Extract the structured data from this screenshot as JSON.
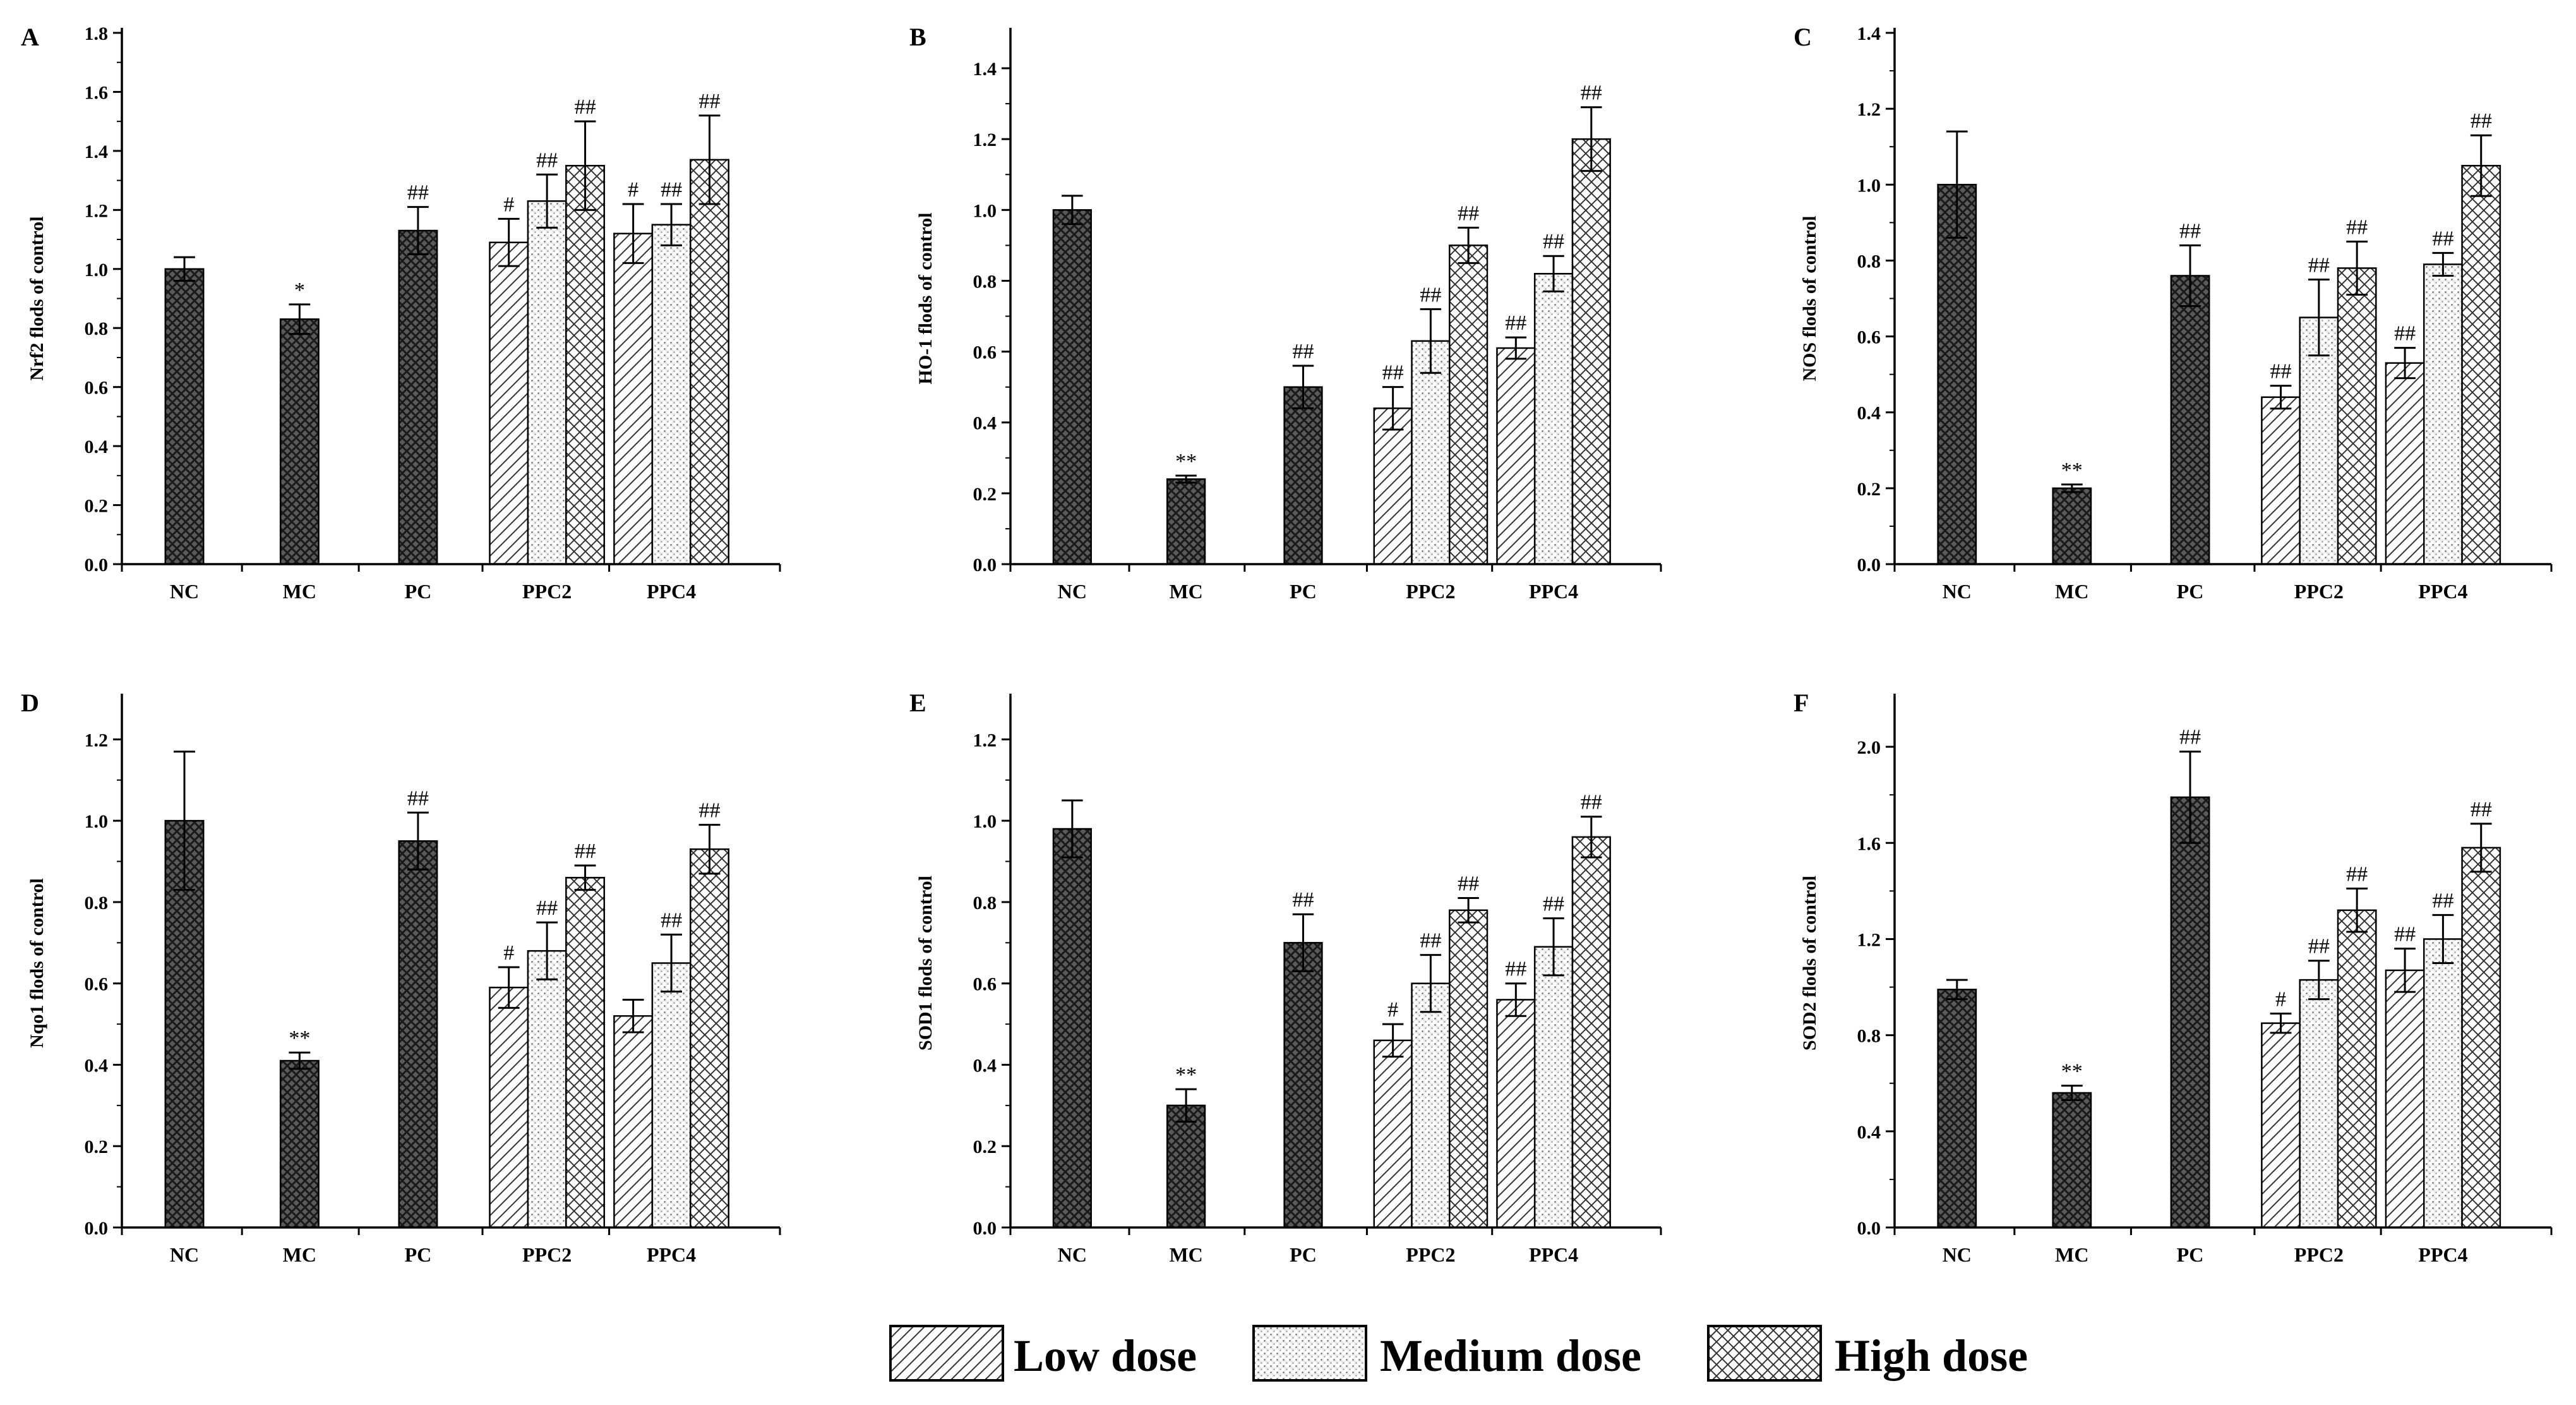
{
  "legend": [
    {
      "key": "low",
      "label": "Low dose",
      "pattern": "hatch-low"
    },
    {
      "key": "medium",
      "label": "Medium dose",
      "pattern": "dots-medium"
    },
    {
      "key": "high",
      "label": "High dose",
      "pattern": "cross-high"
    }
  ],
  "chart_data": [
    {
      "panel": "A",
      "type": "bar",
      "ylabel": "Nrf2 flods of control",
      "ylim": [
        0,
        1.8
      ],
      "yticks": [
        0.0,
        0.2,
        0.4,
        0.6,
        0.8,
        1.0,
        1.2,
        1.4,
        1.6,
        1.8
      ],
      "ytick_decimals": 1,
      "categories": [
        "NC",
        "MC",
        "PC",
        "PPC2",
        "PPC4"
      ],
      "bars": [
        {
          "category": "NC",
          "dose": "single",
          "value": 1.0,
          "error": 0.04,
          "sig": ""
        },
        {
          "category": "MC",
          "dose": "single",
          "value": 0.83,
          "error": 0.05,
          "sig": "*"
        },
        {
          "category": "PC",
          "dose": "single",
          "value": 1.13,
          "error": 0.08,
          "sig": "##"
        },
        {
          "category": "PPC2",
          "dose": "low",
          "value": 1.09,
          "error": 0.08,
          "sig": "#"
        },
        {
          "category": "PPC2",
          "dose": "medium",
          "value": 1.23,
          "error": 0.09,
          "sig": "##"
        },
        {
          "category": "PPC2",
          "dose": "high",
          "value": 1.35,
          "error": 0.15,
          "sig": "##"
        },
        {
          "category": "PPC4",
          "dose": "low",
          "value": 1.12,
          "error": 0.1,
          "sig": "#"
        },
        {
          "category": "PPC4",
          "dose": "medium",
          "value": 1.15,
          "error": 0.07,
          "sig": "##"
        },
        {
          "category": "PPC4",
          "dose": "high",
          "value": 1.37,
          "error": 0.15,
          "sig": "##"
        }
      ]
    },
    {
      "panel": "B",
      "type": "bar",
      "ylabel": "HO-1 flods of control",
      "ylim": [
        0,
        1.5
      ],
      "yticks": [
        0.0,
        0.2,
        0.4,
        0.6,
        0.8,
        1.0,
        1.2,
        1.4
      ],
      "ytick_decimals": 1,
      "categories": [
        "NC",
        "MC",
        "PC",
        "PPC2",
        "PPC4"
      ],
      "bars": [
        {
          "category": "NC",
          "dose": "single",
          "value": 1.0,
          "error": 0.04,
          "sig": ""
        },
        {
          "category": "MC",
          "dose": "single",
          "value": 0.24,
          "error": 0.01,
          "sig": "**"
        },
        {
          "category": "PC",
          "dose": "single",
          "value": 0.5,
          "error": 0.06,
          "sig": "##"
        },
        {
          "category": "PPC2",
          "dose": "low",
          "value": 0.44,
          "error": 0.06,
          "sig": "##"
        },
        {
          "category": "PPC2",
          "dose": "medium",
          "value": 0.63,
          "error": 0.09,
          "sig": "##"
        },
        {
          "category": "PPC2",
          "dose": "high",
          "value": 0.9,
          "error": 0.05,
          "sig": "##"
        },
        {
          "category": "PPC4",
          "dose": "low",
          "value": 0.61,
          "error": 0.03,
          "sig": "##"
        },
        {
          "category": "PPC4",
          "dose": "medium",
          "value": 0.82,
          "error": 0.05,
          "sig": "##"
        },
        {
          "category": "PPC4",
          "dose": "high",
          "value": 1.2,
          "error": 0.09,
          "sig": "##"
        }
      ]
    },
    {
      "panel": "C",
      "type": "bar",
      "ylabel": "NOS flods of control",
      "ylim": [
        0,
        1.4
      ],
      "yticks": [
        0.0,
        0.2,
        0.4,
        0.6,
        0.8,
        1.0,
        1.2,
        1.4
      ],
      "ytick_decimals": 1,
      "categories": [
        "NC",
        "MC",
        "PC",
        "PPC2",
        "PPC4"
      ],
      "bars": [
        {
          "category": "NC",
          "dose": "single",
          "value": 1.0,
          "error": 0.14,
          "sig": ""
        },
        {
          "category": "MC",
          "dose": "single",
          "value": 0.2,
          "error": 0.01,
          "sig": "**"
        },
        {
          "category": "PC",
          "dose": "single",
          "value": 0.76,
          "error": 0.08,
          "sig": "##"
        },
        {
          "category": "PPC2",
          "dose": "low",
          "value": 0.44,
          "error": 0.03,
          "sig": "##"
        },
        {
          "category": "PPC2",
          "dose": "medium",
          "value": 0.65,
          "error": 0.1,
          "sig": "##"
        },
        {
          "category": "PPC2",
          "dose": "high",
          "value": 0.78,
          "error": 0.07,
          "sig": "##"
        },
        {
          "category": "PPC4",
          "dose": "low",
          "value": 0.53,
          "error": 0.04,
          "sig": "##"
        },
        {
          "category": "PPC4",
          "dose": "medium",
          "value": 0.79,
          "error": 0.03,
          "sig": "##"
        },
        {
          "category": "PPC4",
          "dose": "high",
          "value": 1.05,
          "error": 0.08,
          "sig": "##"
        }
      ]
    },
    {
      "panel": "D",
      "type": "bar",
      "ylabel": "Nqo1 flods of control",
      "ylim": [
        0,
        1.3
      ],
      "yticks": [
        0.0,
        0.2,
        0.4,
        0.6,
        0.8,
        1.0,
        1.2
      ],
      "ytick_decimals": 1,
      "categories": [
        "NC",
        "MC",
        "PC",
        "PPC2",
        "PPC4"
      ],
      "bars": [
        {
          "category": "NC",
          "dose": "single",
          "value": 1.0,
          "error": 0.17,
          "sig": ""
        },
        {
          "category": "MC",
          "dose": "single",
          "value": 0.41,
          "error": 0.02,
          "sig": "**"
        },
        {
          "category": "PC",
          "dose": "single",
          "value": 0.95,
          "error": 0.07,
          "sig": "##"
        },
        {
          "category": "PPC2",
          "dose": "low",
          "value": 0.59,
          "error": 0.05,
          "sig": "#"
        },
        {
          "category": "PPC2",
          "dose": "medium",
          "value": 0.68,
          "error": 0.07,
          "sig": "##"
        },
        {
          "category": "PPC2",
          "dose": "high",
          "value": 0.86,
          "error": 0.03,
          "sig": "##"
        },
        {
          "category": "PPC4",
          "dose": "low",
          "value": 0.52,
          "error": 0.04,
          "sig": ""
        },
        {
          "category": "PPC4",
          "dose": "medium",
          "value": 0.65,
          "error": 0.07,
          "sig": "##"
        },
        {
          "category": "PPC4",
          "dose": "high",
          "value": 0.93,
          "error": 0.06,
          "sig": "##"
        }
      ]
    },
    {
      "panel": "E",
      "type": "bar",
      "ylabel": "SOD1 flods of control",
      "ylim": [
        0,
        1.3
      ],
      "yticks": [
        0.0,
        0.2,
        0.4,
        0.6,
        0.8,
        1.0,
        1.2
      ],
      "ytick_decimals": 1,
      "categories": [
        "NC",
        "MC",
        "PC",
        "PPC2",
        "PPC4"
      ],
      "bars": [
        {
          "category": "NC",
          "dose": "single",
          "value": 0.98,
          "error": 0.07,
          "sig": ""
        },
        {
          "category": "MC",
          "dose": "single",
          "value": 0.3,
          "error": 0.04,
          "sig": "**"
        },
        {
          "category": "PC",
          "dose": "single",
          "value": 0.7,
          "error": 0.07,
          "sig": "##"
        },
        {
          "category": "PPC2",
          "dose": "low",
          "value": 0.46,
          "error": 0.04,
          "sig": "#"
        },
        {
          "category": "PPC2",
          "dose": "medium",
          "value": 0.6,
          "error": 0.07,
          "sig": "##"
        },
        {
          "category": "PPC2",
          "dose": "high",
          "value": 0.78,
          "error": 0.03,
          "sig": "##"
        },
        {
          "category": "PPC4",
          "dose": "low",
          "value": 0.56,
          "error": 0.04,
          "sig": "##"
        },
        {
          "category": "PPC4",
          "dose": "medium",
          "value": 0.69,
          "error": 0.07,
          "sig": "##"
        },
        {
          "category": "PPC4",
          "dose": "high",
          "value": 0.96,
          "error": 0.05,
          "sig": "##"
        }
      ]
    },
    {
      "panel": "F",
      "type": "bar",
      "ylabel": "SOD2 flods of control",
      "ylim": [
        0,
        2.2
      ],
      "yticks": [
        0.0,
        0.4,
        0.8,
        1.2,
        1.6,
        2.0
      ],
      "ytick_decimals": 1,
      "categories": [
        "NC",
        "MC",
        "PC",
        "PPC2",
        "PPC4"
      ],
      "bars": [
        {
          "category": "NC",
          "dose": "single",
          "value": 0.99,
          "error": 0.04,
          "sig": ""
        },
        {
          "category": "MC",
          "dose": "single",
          "value": 0.56,
          "error": 0.03,
          "sig": "**"
        },
        {
          "category": "PC",
          "dose": "single",
          "value": 1.79,
          "error": 0.19,
          "sig": "##"
        },
        {
          "category": "PPC2",
          "dose": "low",
          "value": 0.85,
          "error": 0.04,
          "sig": "#"
        },
        {
          "category": "PPC2",
          "dose": "medium",
          "value": 1.03,
          "error": 0.08,
          "sig": "##"
        },
        {
          "category": "PPC2",
          "dose": "high",
          "value": 1.32,
          "error": 0.09,
          "sig": "##"
        },
        {
          "category": "PPC4",
          "dose": "low",
          "value": 1.07,
          "error": 0.09,
          "sig": "##"
        },
        {
          "category": "PPC4",
          "dose": "medium",
          "value": 1.2,
          "error": 0.1,
          "sig": "##"
        },
        {
          "category": "PPC4",
          "dose": "high",
          "value": 1.58,
          "error": 0.1,
          "sig": "##"
        }
      ]
    }
  ]
}
